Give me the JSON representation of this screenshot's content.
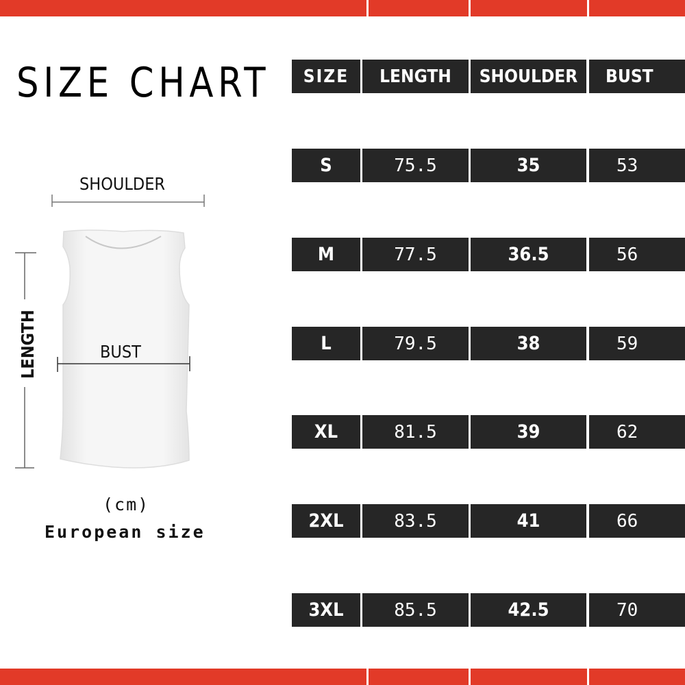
{
  "title": "SIZE CHART",
  "accent_color": "#e23a28",
  "cell_color": "#262626",
  "diagram": {
    "shoulder_label": "SHOULDER",
    "length_label": "LENGTH",
    "bust_label": "BUST",
    "unit": "(cm)",
    "note": "European size"
  },
  "table": {
    "headers": [
      "SIZE",
      "LENGTH",
      "SHOULDER",
      "BUST"
    ],
    "rows": [
      [
        "S",
        "75.5",
        "35",
        "53"
      ],
      [
        "M",
        "77.5",
        "36.5",
        "56"
      ],
      [
        "L",
        "79.5",
        "38",
        "59"
      ],
      [
        "XL",
        "81.5",
        "39",
        "62"
      ],
      [
        "2XL",
        "83.5",
        "41",
        "66"
      ],
      [
        "3XL",
        "85.5",
        "42.5",
        "70"
      ]
    ]
  }
}
